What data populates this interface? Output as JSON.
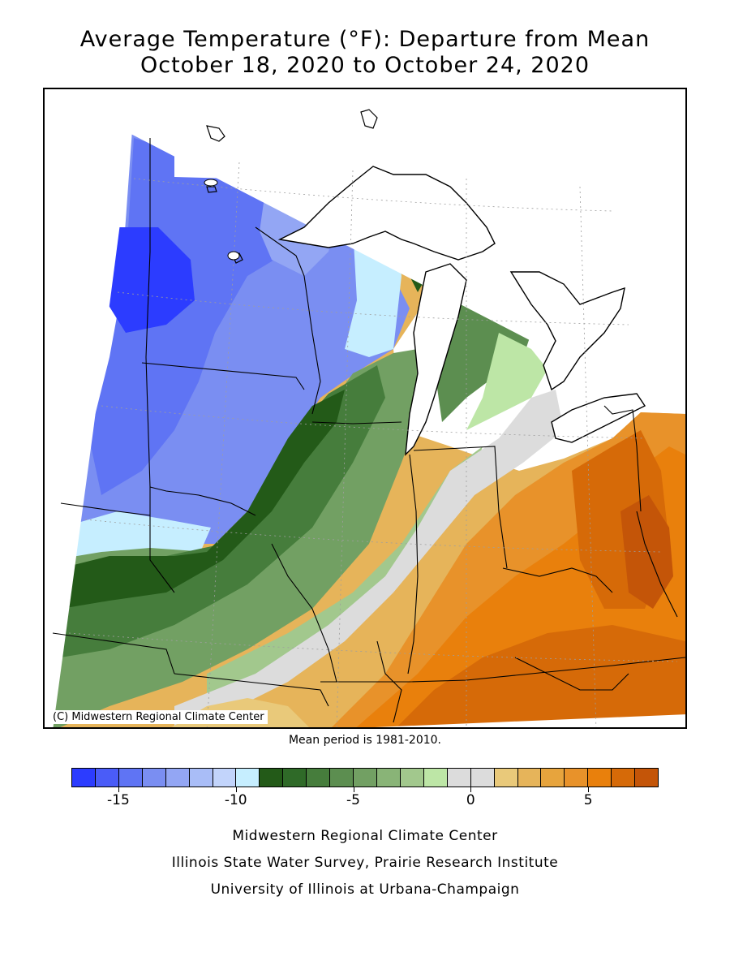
{
  "title_line1": "Average Temperature (°F): Departure from Mean",
  "title_line2": "October 18, 2020 to October 24, 2020",
  "credit": "(C) Midwestern Regional Climate Center",
  "mean_period": "Mean period is 1981-2010.",
  "legend": {
    "colors": [
      "#2c3cff",
      "#4a5cf8",
      "#5f74f4",
      "#7a8ef2",
      "#93a6f4",
      "#a9bdf7",
      "#c2d4fb",
      "#c6eeff",
      "#235a18",
      "#2f6a28",
      "#467d3c",
      "#5c8e50",
      "#72a063",
      "#89b477",
      "#a2c88d",
      "#bde6a6",
      "#dcdcdc",
      "#dcdcdc",
      "#e9c97a",
      "#e6b45a",
      "#e7a43d",
      "#e8922a",
      "#e9800c",
      "#d66a08",
      "#c45508"
    ],
    "ticks": [
      {
        "label": "-15",
        "value": -15
      },
      {
        "label": "-10",
        "value": -10
      },
      {
        "label": "-5",
        "value": -5
      },
      {
        "label": "0",
        "value": 0
      },
      {
        "label": "5",
        "value": 5
      }
    ]
  },
  "footer": {
    "line1": "Midwestern Regional Climate Center",
    "line2": "Illinois State Water Survey, Prairie Research Institute",
    "line3": "University of Illinois at Urbana-Champaign"
  }
}
